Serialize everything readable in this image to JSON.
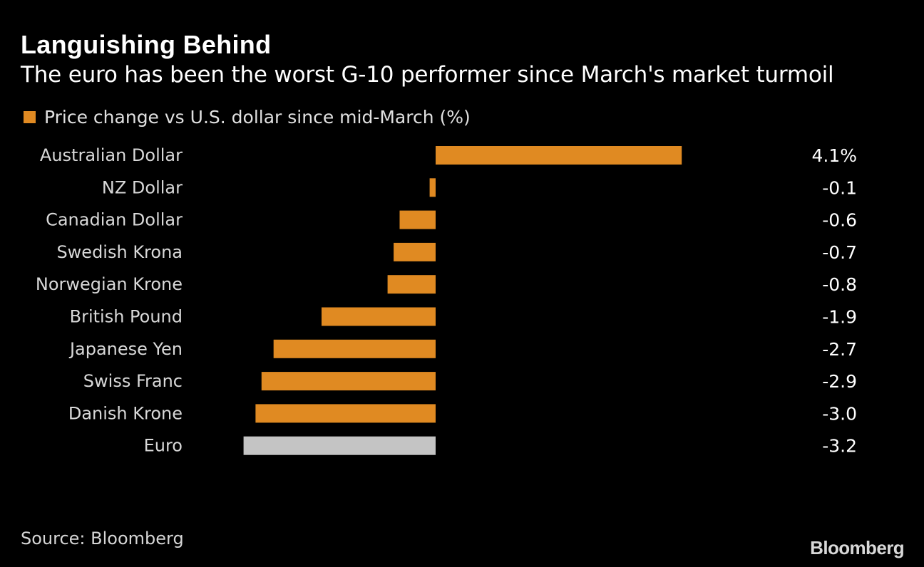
{
  "header": {
    "title": "Languishing Behind",
    "subtitle": "The euro has been the worst G-10 performer since March's market turmoil"
  },
  "legend": {
    "label": "Price change vs U.S. dollar since mid-March (%)",
    "color": "#e08a22"
  },
  "colors": {
    "bar": "#e08a22",
    "highlight": "#c4c4c4",
    "label": "#d8d8d8",
    "value": "#ffffff"
  },
  "chart_data": {
    "type": "bar",
    "orientation": "horizontal",
    "title": "Languishing Behind",
    "subtitle": "The euro has been the worst G-10 performer since March's market turmoil",
    "xlabel": "",
    "ylabel": "",
    "grid": false,
    "legend_position": "top-left",
    "xlim": [
      -3.2,
      4.1
    ],
    "categories": [
      "Australian Dollar",
      "NZ Dollar",
      "Canadian Dollar",
      "Swedish Krona",
      "Norwegian Krone",
      "British Pound",
      "Japanese Yen",
      "Swiss Franc",
      "Danish Krone",
      "Euro"
    ],
    "series": [
      {
        "name": "Price change vs U.S. dollar since mid-March (%)",
        "values": [
          4.1,
          -0.1,
          -0.6,
          -0.7,
          -0.8,
          -1.9,
          -2.7,
          -2.9,
          -3.0,
          -3.2
        ]
      }
    ],
    "value_labels": [
      "4.1%",
      "-0.1",
      "-0.6",
      "-0.7",
      "-0.8",
      "-1.9",
      "-2.7",
      "-2.9",
      "-3.0",
      "-3.2"
    ],
    "highlighted_category": "Euro"
  },
  "footer": {
    "source": "Source: Bloomberg",
    "brand": "Bloomberg"
  }
}
